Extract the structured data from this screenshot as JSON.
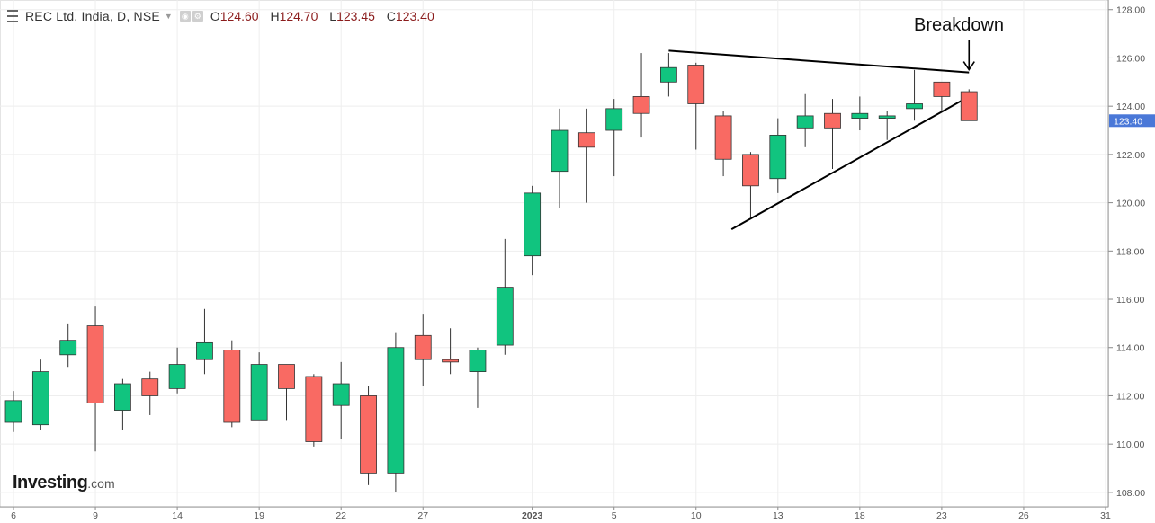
{
  "header": {
    "title": "REC Ltd, India, D, NSE",
    "open_label": "O",
    "open": "124.60",
    "high_label": "H",
    "high": "124.70",
    "low_label": "L",
    "low": "123.45",
    "close_label": "C",
    "close": "123.40"
  },
  "logo": {
    "brand": "Investing",
    "suffix": ".com"
  },
  "colors": {
    "up": "#11c47f",
    "down": "#f96a63",
    "price_tag": "#4a78d8",
    "grid": "#eeeeee",
    "axis": "#555555"
  },
  "chart_data": {
    "type": "candlestick",
    "title": "REC Ltd, India, D, NSE",
    "ylim": [
      107.4,
      128.4
    ],
    "y_ticks": [
      "108.00",
      "110.00",
      "112.00",
      "114.00",
      "116.00",
      "118.00",
      "120.00",
      "122.00",
      "124.00",
      "126.00",
      "128.00"
    ],
    "x_ticks": [
      {
        "label": "6",
        "index": 0
      },
      {
        "label": "9",
        "index": 3
      },
      {
        "label": "14",
        "index": 6
      },
      {
        "label": "19",
        "index": 9
      },
      {
        "label": "22",
        "index": 12
      },
      {
        "label": "27",
        "index": 15
      },
      {
        "label": "2023",
        "index": 19
      },
      {
        "label": "5",
        "index": 22
      },
      {
        "label": "10",
        "index": 25
      },
      {
        "label": "13",
        "index": 28
      },
      {
        "label": "18",
        "index": 31
      },
      {
        "label": "23",
        "index": 34
      },
      {
        "label": "26",
        "index": 37
      },
      {
        "label": "31",
        "index": 40
      }
    ],
    "last_price": "123.40",
    "candles": [
      {
        "o": 110.9,
        "h": 112.2,
        "l": 110.5,
        "c": 111.8
      },
      {
        "o": 110.8,
        "h": 113.5,
        "l": 110.6,
        "c": 113.0
      },
      {
        "o": 113.7,
        "h": 115.0,
        "l": 113.2,
        "c": 114.3
      },
      {
        "o": 114.9,
        "h": 115.7,
        "l": 109.7,
        "c": 111.7
      },
      {
        "o": 111.4,
        "h": 112.7,
        "l": 110.6,
        "c": 112.5
      },
      {
        "o": 112.7,
        "h": 113.0,
        "l": 111.2,
        "c": 112.0
      },
      {
        "o": 112.3,
        "h": 114.0,
        "l": 112.1,
        "c": 113.3
      },
      {
        "o": 113.5,
        "h": 115.6,
        "l": 112.9,
        "c": 114.2
      },
      {
        "o": 113.9,
        "h": 114.3,
        "l": 110.7,
        "c": 110.9
      },
      {
        "o": 111.0,
        "h": 113.8,
        "l": 111.0,
        "c": 113.3
      },
      {
        "o": 113.3,
        "h": 113.3,
        "l": 111.0,
        "c": 112.3
      },
      {
        "o": 112.8,
        "h": 112.9,
        "l": 109.9,
        "c": 110.1
      },
      {
        "o": 111.6,
        "h": 113.4,
        "l": 110.2,
        "c": 112.5
      },
      {
        "o": 112.0,
        "h": 112.4,
        "l": 108.3,
        "c": 108.8
      },
      {
        "o": 108.8,
        "h": 114.6,
        "l": 108.0,
        "c": 114.0
      },
      {
        "o": 114.5,
        "h": 115.4,
        "l": 112.4,
        "c": 113.5
      },
      {
        "o": 113.5,
        "h": 114.8,
        "l": 112.9,
        "c": 113.4
      },
      {
        "o": 113.0,
        "h": 114.0,
        "l": 111.5,
        "c": 113.9
      },
      {
        "o": 114.1,
        "h": 118.5,
        "l": 113.7,
        "c": 116.5
      },
      {
        "o": 117.8,
        "h": 120.7,
        "l": 117.0,
        "c": 120.4
      },
      {
        "o": 121.3,
        "h": 123.9,
        "l": 119.8,
        "c": 123.0
      },
      {
        "o": 122.9,
        "h": 123.9,
        "l": 120.0,
        "c": 122.3
      },
      {
        "o": 123.0,
        "h": 124.3,
        "l": 121.1,
        "c": 123.9
      },
      {
        "o": 124.4,
        "h": 126.2,
        "l": 122.7,
        "c": 123.7
      },
      {
        "o": 125.0,
        "h": 126.2,
        "l": 124.4,
        "c": 125.6
      },
      {
        "o": 125.7,
        "h": 125.8,
        "l": 122.2,
        "c": 124.1
      },
      {
        "o": 123.6,
        "h": 123.8,
        "l": 121.1,
        "c": 121.8
      },
      {
        "o": 122.0,
        "h": 122.1,
        "l": 119.4,
        "c": 120.7
      },
      {
        "o": 121.0,
        "h": 123.5,
        "l": 120.4,
        "c": 122.8
      },
      {
        "o": 123.1,
        "h": 124.5,
        "l": 122.3,
        "c": 123.6
      },
      {
        "o": 123.7,
        "h": 124.3,
        "l": 121.4,
        "c": 123.1
      },
      {
        "o": 123.5,
        "h": 124.4,
        "l": 123.0,
        "c": 123.7
      },
      {
        "o": 123.5,
        "h": 123.8,
        "l": 122.6,
        "c": 123.6
      },
      {
        "o": 123.9,
        "h": 125.5,
        "l": 123.4,
        "c": 124.1
      },
      {
        "o": 125.0,
        "h": 125.0,
        "l": 123.8,
        "c": 124.4
      },
      {
        "o": 124.6,
        "h": 124.7,
        "l": 123.45,
        "c": 123.4
      }
    ],
    "trendlines": [
      {
        "from": {
          "index": 24,
          "y": 126.3
        },
        "to": {
          "index": 35,
          "y": 125.4
        }
      },
      {
        "from": {
          "index": 26.3,
          "y": 118.9
        },
        "to": {
          "index": 35,
          "y": 124.4
        }
      }
    ],
    "annotations": [
      {
        "text": "Breakdown",
        "target": {
          "index": 35,
          "y": 125.4
        }
      }
    ]
  }
}
